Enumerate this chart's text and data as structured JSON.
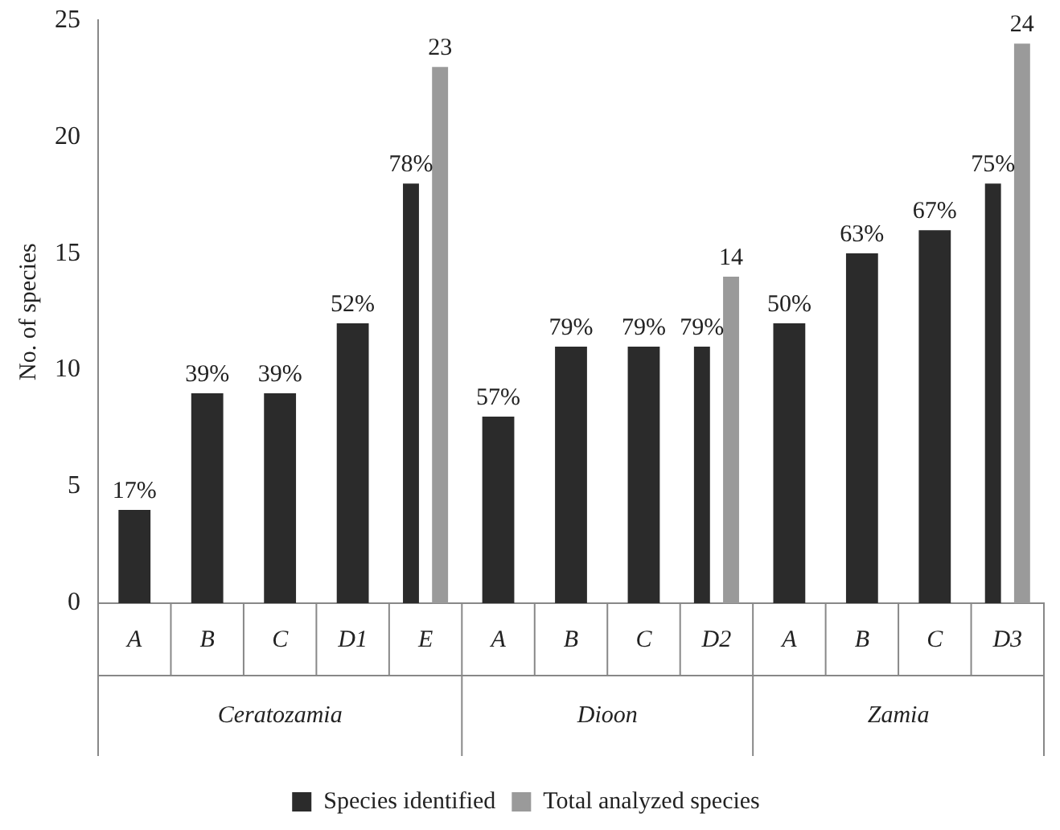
{
  "chart_data": {
    "type": "bar",
    "ylabel": "No. of species",
    "categories": [
      "A",
      "B",
      "C",
      "D1",
      "E",
      "A",
      "B",
      "C",
      "D2",
      "A",
      "B",
      "C",
      "D3"
    ],
    "annotations": [
      "17%",
      "39%",
      "39%",
      "52%",
      "78%",
      "57%",
      "79%",
      "79%",
      "79%",
      "50%",
      "63%",
      "67%",
      "75%",
      "Ceratozamia",
      "Dioon",
      "Zamia"
    ],
    "series": [
      {
        "name": "Species identified",
        "color": "#2b2b2b",
        "values": [
          4,
          9,
          9,
          12,
          18,
          8,
          11,
          11,
          11,
          12,
          15,
          16,
          18
        ]
      },
      {
        "name": "Total analyzed species",
        "color": "#9a9a9a",
        "values": [
          null,
          null,
          null,
          null,
          23,
          null,
          null,
          null,
          14,
          null,
          null,
          null,
          24
        ],
        "value_labels": [
          null,
          null,
          null,
          null,
          "23",
          null,
          null,
          null,
          "14",
          null,
          null,
          null,
          "24"
        ]
      }
    ],
    "ylim": [
      0,
      25
    ],
    "yticks": [
      0,
      5,
      10,
      15,
      20,
      25
    ],
    "grid": false,
    "legend": "bottom"
  }
}
